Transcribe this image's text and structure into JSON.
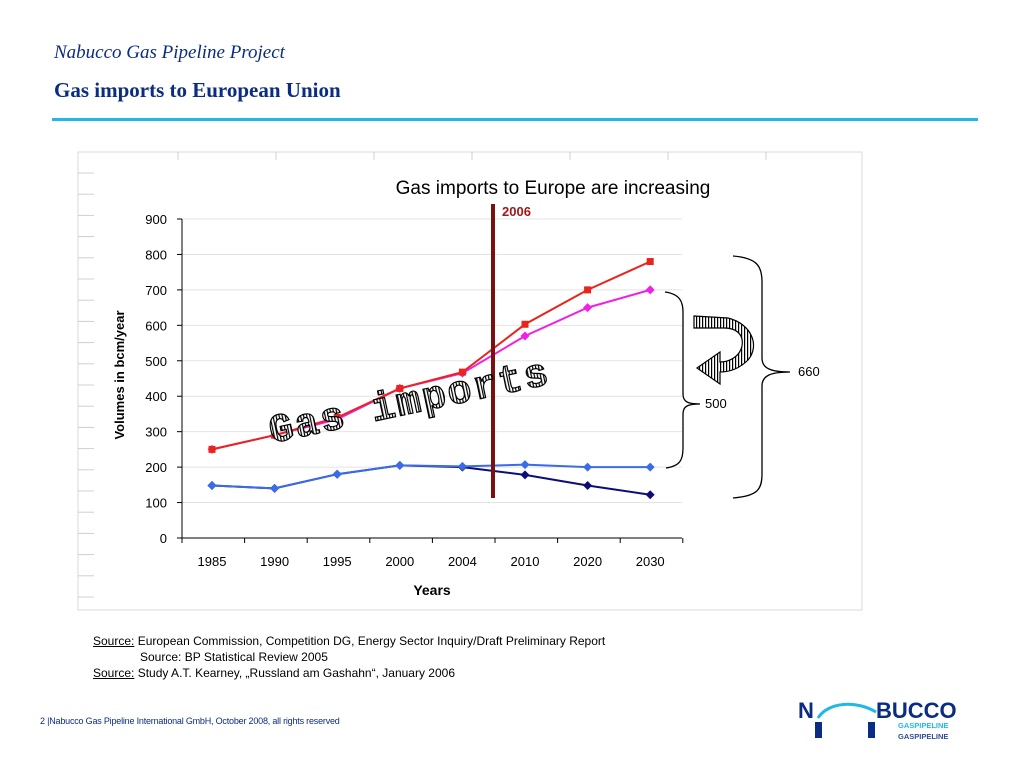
{
  "header": {
    "subtitle": "Nabucco Gas Pipeline Project",
    "title": "Gas imports to European Union"
  },
  "chart_data": {
    "type": "line",
    "title": "Gas imports to Europe are increasing",
    "xlabel": "Years",
    "ylabel": "Volumes in bcm/year",
    "categories": [
      "1985",
      "1990",
      "1995",
      "2000",
      "2004",
      "2010",
      "2020",
      "2030"
    ],
    "ylim": [
      0,
      900
    ],
    "yticks": [
      "0",
      "100",
      "200",
      "300",
      "400",
      "500",
      "600",
      "700",
      "800",
      "900"
    ],
    "grid": true,
    "series": [
      {
        "values": [
          250,
          290,
          340,
          422,
          468,
          603,
          700,
          780
        ],
        "color": "#e8241c",
        "marker": "square"
      },
      {
        "values": [
          250,
          290,
          335,
          422,
          465,
          570,
          650,
          700
        ],
        "color": "#f020e6",
        "marker": "diamond"
      },
      {
        "values": [
          148,
          140,
          180,
          205,
          200,
          178,
          148,
          122
        ],
        "color": "#0d0d7a",
        "marker": "diamond"
      },
      {
        "values": [
          148,
          140,
          180,
          205,
          202,
          207,
          200,
          200
        ],
        "color": "#3a6be8",
        "marker": "diamond"
      }
    ],
    "annotations": {
      "marker_year_label": "2006",
      "overlay_text": "Gas imports",
      "brace_inner_label": "500",
      "brace_outer_label": "660"
    }
  },
  "source": {
    "label": "Source:",
    "line1": "European Commission, Competition DG, Energy Sector Inquiry/Draft Preliminary Report",
    "line2": "Source: BP Statistical Review 2005",
    "line3": "Study A.T. Kearney, „Russland am Gashahn“, January 2006"
  },
  "footer": {
    "text": "2 |Nabucco Gas Pipeline International GmbH,  October 2008, all rights reserved"
  },
  "logo": {
    "word": "BUCCO",
    "prefix": "N",
    "tagline": "GASPIPELINE"
  },
  "colors": {
    "brand_blue": "#0a2c82",
    "accent_cyan": "#22b8e6",
    "marker_line": "#7a1010",
    "marker_label": "#a01818"
  }
}
